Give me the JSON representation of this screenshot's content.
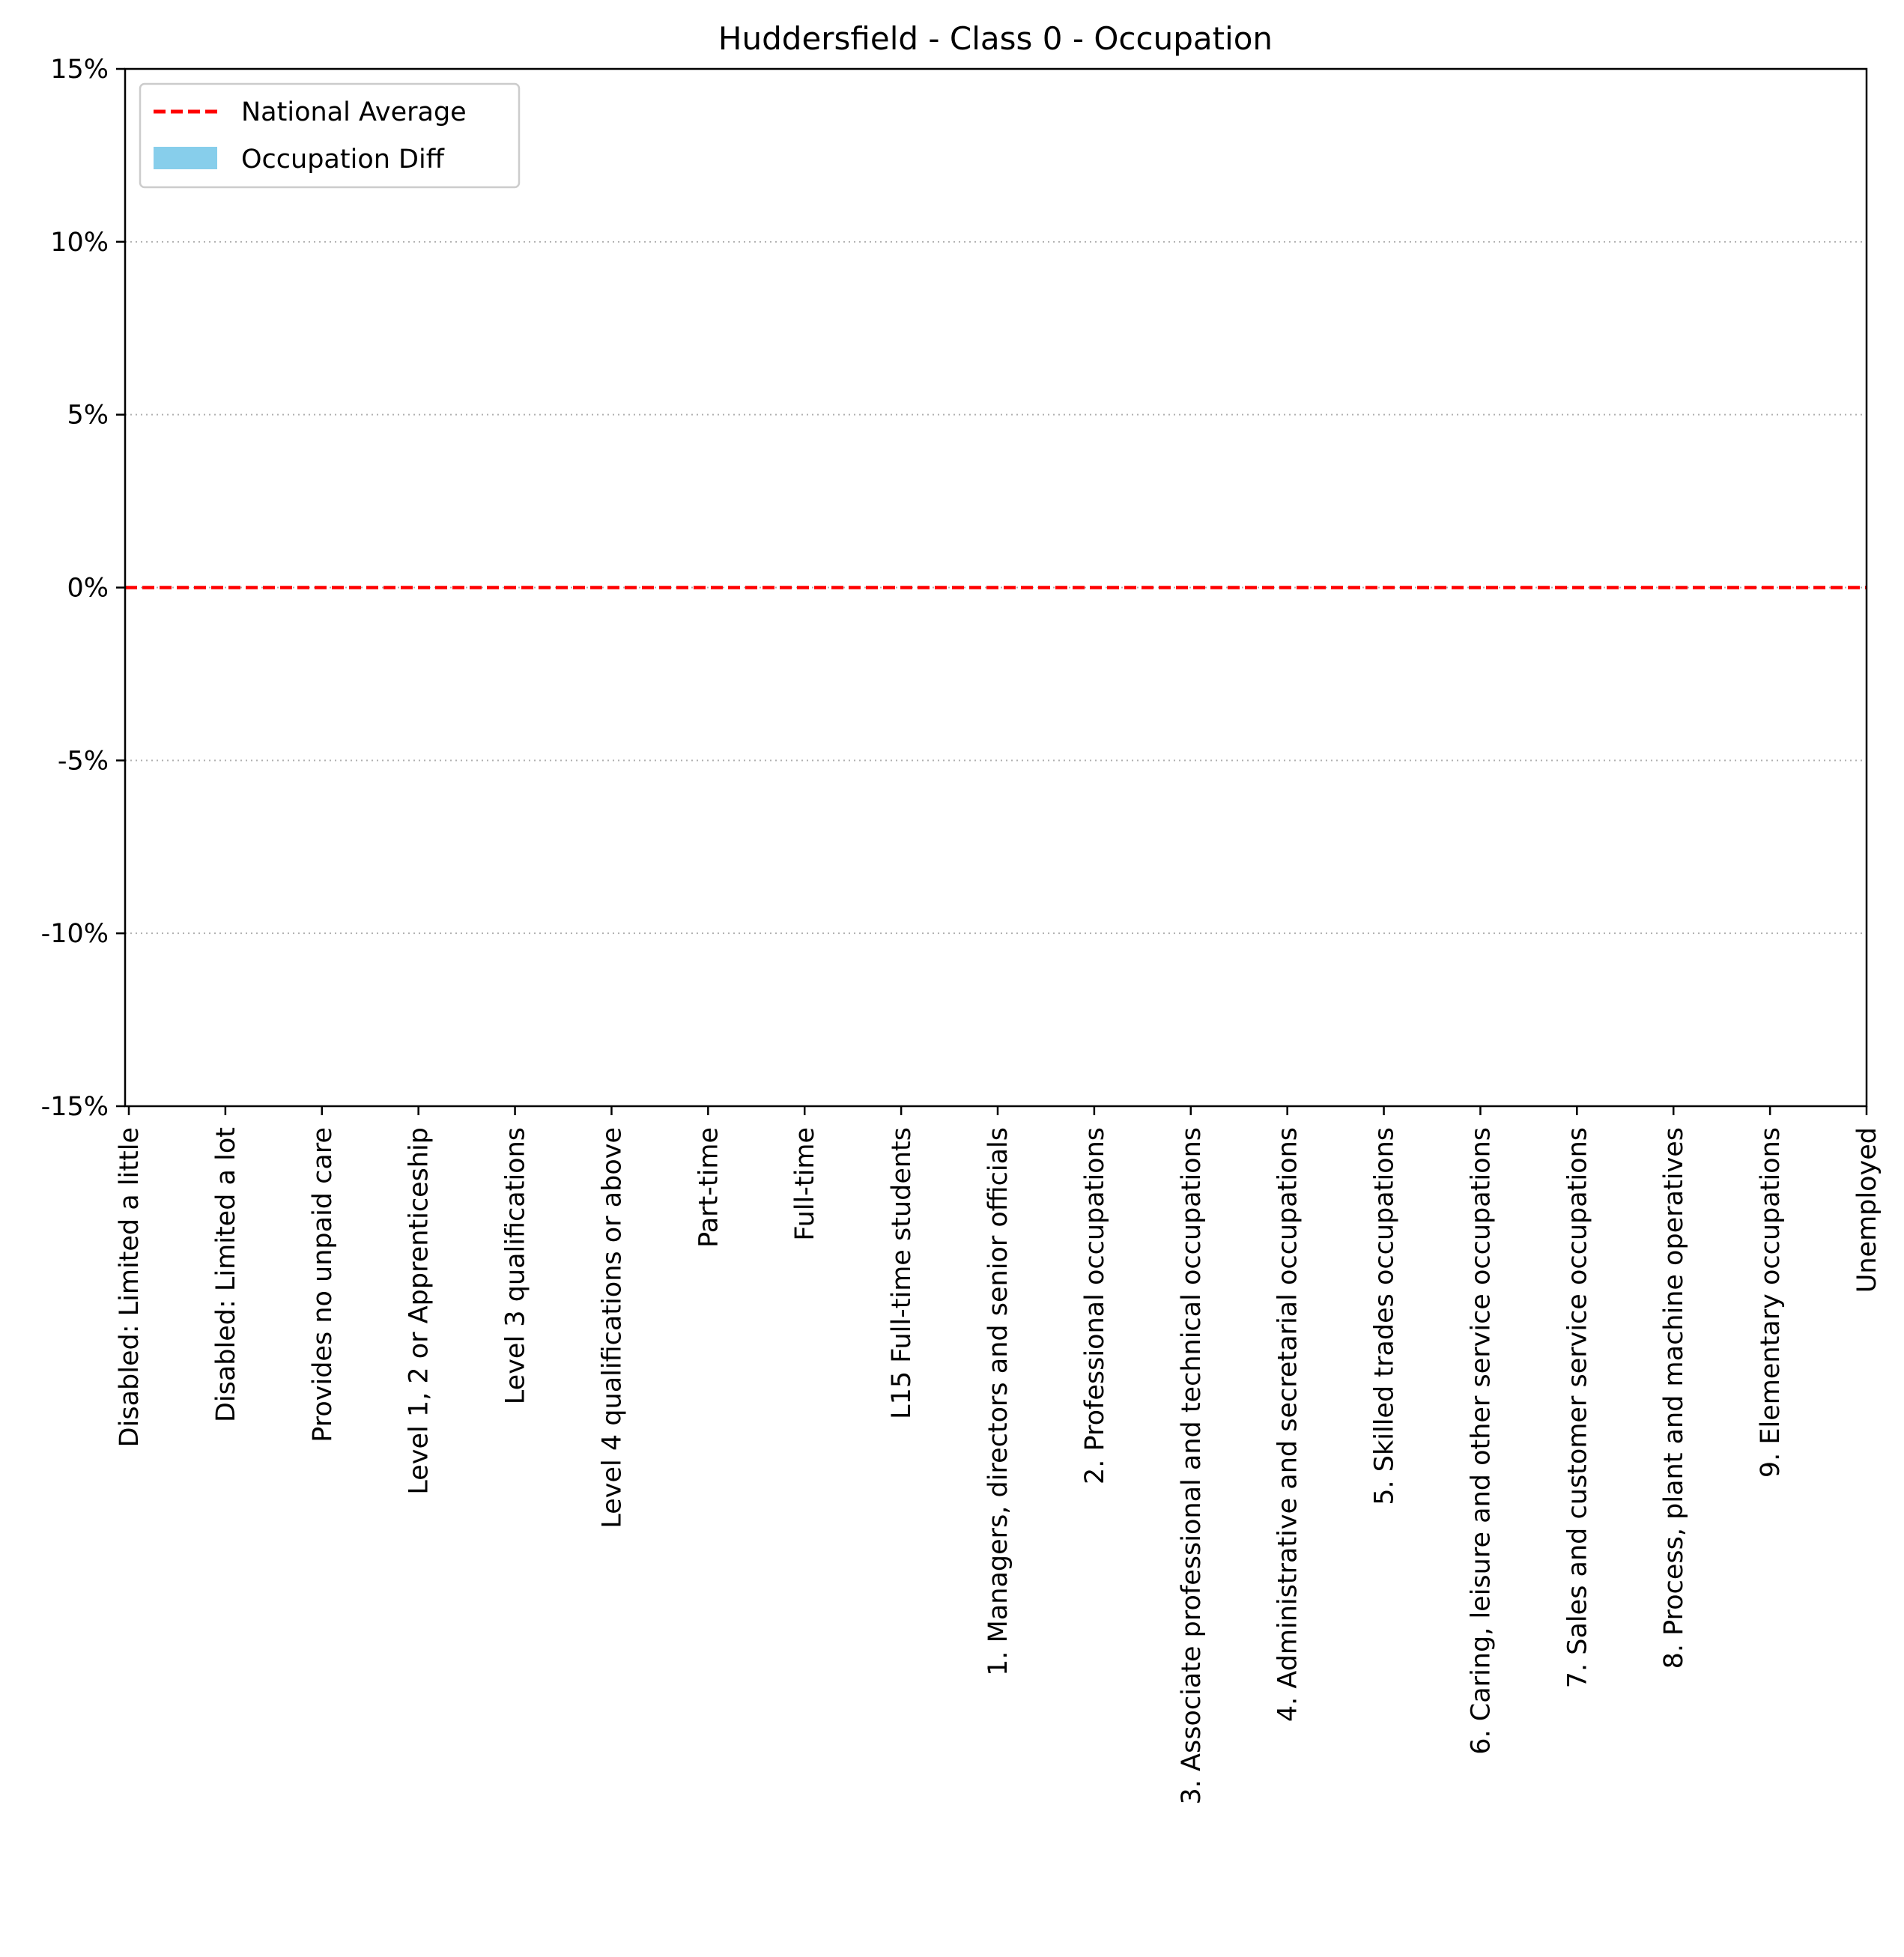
{
  "chart_data": {
    "type": "bar",
    "title": "Huddersfield - Class 0 - Occupation",
    "xlabel": "",
    "ylabel": "",
    "ylim": [
      -15,
      15
    ],
    "y_ticks": [
      15,
      10,
      5,
      0,
      -5,
      -10,
      -15
    ],
    "y_tick_labels": [
      "15%",
      "10%",
      "5%",
      "0%",
      "-5%",
      "-10%",
      "-15%"
    ],
    "grid": "y-dotted",
    "legend_position": "top-left",
    "legend": [
      "National Average",
      "Occupation Diff"
    ],
    "colors": {
      "national_average": "#ff0000",
      "occupation_diff": "#87ceeb",
      "grid": "#b0b0b0",
      "axis": "#000000"
    },
    "categories": [
      "Disabled: Limited a little",
      "Disabled: Limited a lot",
      "Provides no unpaid care",
      "Level 1, 2 or Apprenticeship",
      "Level 3 qualifications",
      "Level 4 qualifications or above",
      "Part-time",
      "Full-time",
      "L15 Full-time students",
      "1. Managers, directors and senior officials",
      "2. Professional occupations",
      "3. Associate professional and technical occupations",
      "4. Administrative and secretarial occupations",
      "5. Skilled trades occupations",
      "6. Caring, leisure and other service occupations",
      "7. Sales and customer service occupations",
      "8. Process, plant and machine operatives",
      "9. Elementary occupations",
      "Unemployed"
    ],
    "series": [
      {
        "name": "Occupation Diff",
        "values": [
          0,
          0,
          0,
          0,
          0,
          0,
          0,
          0,
          0,
          0,
          0,
          0,
          0,
          0,
          0,
          0,
          0,
          0,
          0
        ]
      }
    ],
    "reference_line": {
      "name": "National Average",
      "value": 0
    }
  }
}
